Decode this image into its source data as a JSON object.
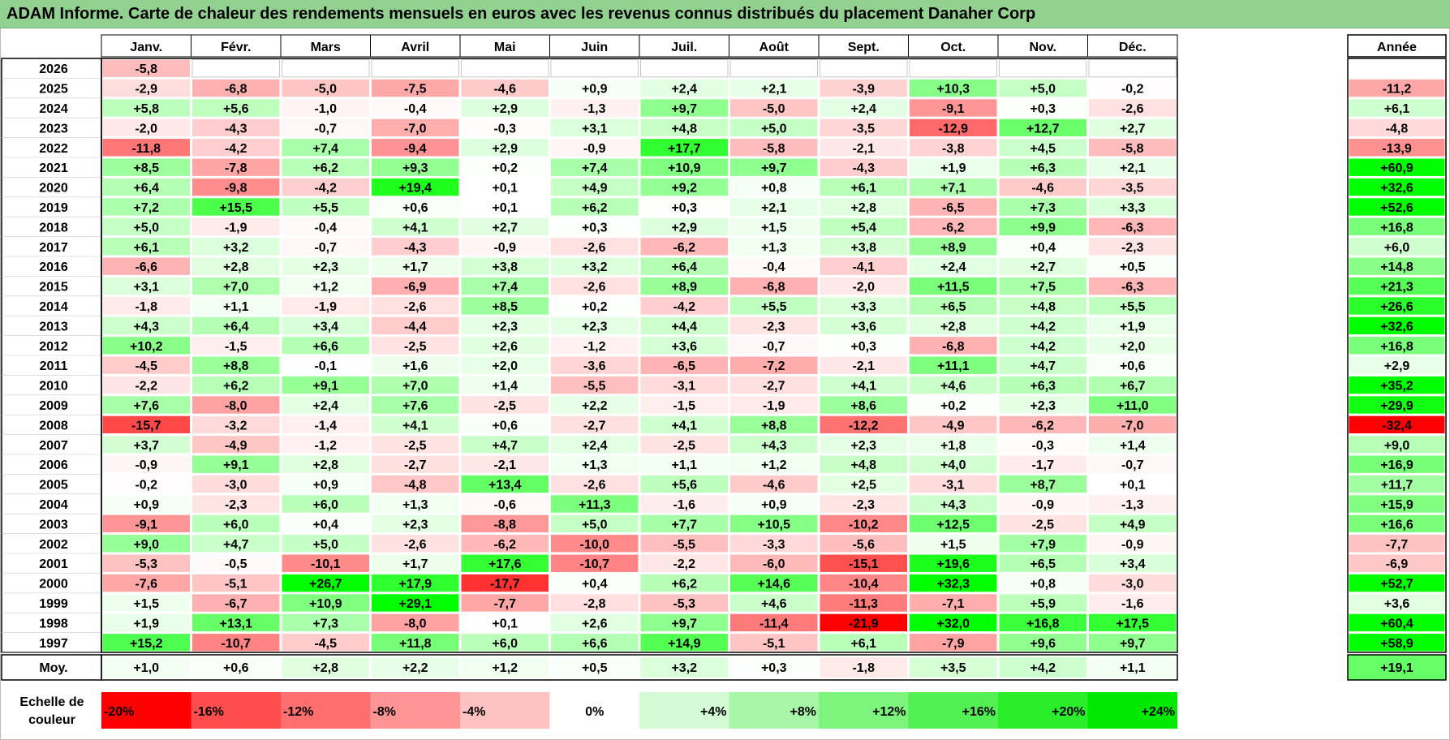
{
  "title": "ADAM Informe. Carte de chaleur des rendements mensuels en euros avec les revenus connus distribués du placement Danaher Corp",
  "chart_data": {
    "type": "heatmap",
    "title": "ADAM Informe. Carte de chaleur des rendements mensuels en euros avec les revenus connus distribués du placement Danaher Corp",
    "months": [
      "Janv.",
      "Févr.",
      "Mars",
      "Avril",
      "Mai",
      "Juin",
      "Juil.",
      "Août",
      "Sept.",
      "Oct.",
      "Nov.",
      "Déc."
    ],
    "annual_label": "Année",
    "average_label": "Moy.",
    "scale_label_line1": "Echelle de",
    "scale_label_line2": "couleur",
    "rows": [
      {
        "year": "2026",
        "values": [
          "-5,8",
          "",
          "",
          "",
          "",
          "",
          "",
          "",
          "",
          "",
          "",
          ""
        ],
        "annual": ""
      },
      {
        "year": "2025",
        "values": [
          "-2,9",
          "-6,8",
          "-5,0",
          "-7,5",
          "-4,6",
          "+0,9",
          "+2,4",
          "+2,1",
          "-3,9",
          "+10,3",
          "+5,0",
          "-0,2"
        ],
        "annual": "-11,2"
      },
      {
        "year": "2024",
        "values": [
          "+5,8",
          "+5,6",
          "-1,0",
          "-0,4",
          "+2,9",
          "-1,3",
          "+9,7",
          "-5,0",
          "+2,4",
          "-9,1",
          "+0,3",
          "-2,6"
        ],
        "annual": "+6,1"
      },
      {
        "year": "2023",
        "values": [
          "-2,0",
          "-4,3",
          "-0,7",
          "-7,0",
          "-0,3",
          "+3,1",
          "+4,8",
          "+5,0",
          "-3,5",
          "-12,9",
          "+12,7",
          "+2,7"
        ],
        "annual": "-4,8"
      },
      {
        "year": "2022",
        "values": [
          "-11,8",
          "-4,2",
          "+7,4",
          "-9,4",
          "+2,9",
          "-0,9",
          "+17,7",
          "-5,8",
          "-2,1",
          "-3,8",
          "+4,5",
          "-5,8"
        ],
        "annual": "-13,9"
      },
      {
        "year": "2021",
        "values": [
          "+8,5",
          "-7,8",
          "+6,2",
          "+9,3",
          "+0,2",
          "+7,4",
          "+10,9",
          "+9,7",
          "-4,3",
          "+1,9",
          "+6,3",
          "+2,1"
        ],
        "annual": "+60,9"
      },
      {
        "year": "2020",
        "values": [
          "+6,4",
          "-9,8",
          "-4,2",
          "+19,4",
          "+0,1",
          "+4,9",
          "+9,2",
          "+0,8",
          "+6,1",
          "+7,1",
          "-4,6",
          "-3,5"
        ],
        "annual": "+32,6"
      },
      {
        "year": "2019",
        "values": [
          "+7,2",
          "+15,5",
          "+5,5",
          "+0,6",
          "+0,1",
          "+6,2",
          "+0,3",
          "+2,1",
          "+2,8",
          "-6,5",
          "+7,3",
          "+3,3"
        ],
        "annual": "+52,6"
      },
      {
        "year": "2018",
        "values": [
          "+5,0",
          "-1,9",
          "-0,4",
          "+4,1",
          "+2,7",
          "+0,3",
          "+2,9",
          "+1,5",
          "+5,4",
          "-6,2",
          "+9,9",
          "-6,3"
        ],
        "annual": "+16,8"
      },
      {
        "year": "2017",
        "values": [
          "+6,1",
          "+3,2",
          "-0,7",
          "-4,3",
          "-0,9",
          "-2,6",
          "-6,2",
          "+1,3",
          "+3,8",
          "+8,9",
          "+0,4",
          "-2,3"
        ],
        "annual": "+6,0"
      },
      {
        "year": "2016",
        "values": [
          "-6,6",
          "+2,8",
          "+2,3",
          "+1,7",
          "+3,8",
          "+3,2",
          "+6,4",
          "-0,4",
          "-4,1",
          "+2,4",
          "+2,7",
          "+0,5"
        ],
        "annual": "+14,8"
      },
      {
        "year": "2015",
        "values": [
          "+3,1",
          "+7,0",
          "+1,2",
          "-6,9",
          "+7,4",
          "-2,6",
          "+8,9",
          "-6,8",
          "-2,0",
          "+11,5",
          "+7,5",
          "-6,3"
        ],
        "annual": "+21,3"
      },
      {
        "year": "2014",
        "values": [
          "-1,8",
          "+1,1",
          "-1,9",
          "-2,6",
          "+8,5",
          "+0,2",
          "-4,2",
          "+5,5",
          "+3,3",
          "+6,5",
          "+4,8",
          "+5,5"
        ],
        "annual": "+26,6"
      },
      {
        "year": "2013",
        "values": [
          "+4,3",
          "+6,4",
          "+3,4",
          "-4,4",
          "+2,3",
          "+2,3",
          "+4,4",
          "-2,3",
          "+3,6",
          "+2,8",
          "+4,2",
          "+1,9"
        ],
        "annual": "+32,6"
      },
      {
        "year": "2012",
        "values": [
          "+10,2",
          "-1,5",
          "+6,6",
          "-2,5",
          "+2,6",
          "-1,2",
          "+3,6",
          "-0,7",
          "+0,3",
          "-6,8",
          "+4,2",
          "+2,0"
        ],
        "annual": "+16,8"
      },
      {
        "year": "2011",
        "values": [
          "-4,5",
          "+8,8",
          "-0,1",
          "+1,6",
          "+2,0",
          "-3,6",
          "-6,5",
          "-7,2",
          "-2,1",
          "+11,1",
          "+4,7",
          "+0,6"
        ],
        "annual": "+2,9"
      },
      {
        "year": "2010",
        "values": [
          "-2,2",
          "+6,2",
          "+9,1",
          "+7,0",
          "+1,4",
          "-5,5",
          "-3,1",
          "-2,7",
          "+4,1",
          "+4,6",
          "+6,3",
          "+6,7"
        ],
        "annual": "+35,2"
      },
      {
        "year": "2009",
        "values": [
          "+7,6",
          "-8,0",
          "+2,4",
          "+7,6",
          "-2,5",
          "+2,2",
          "-1,5",
          "-1,9",
          "+8,6",
          "+0,2",
          "+2,3",
          "+11,0"
        ],
        "annual": "+29,9"
      },
      {
        "year": "2008",
        "values": [
          "-15,7",
          "-3,2",
          "-1,4",
          "+4,1",
          "+0,6",
          "-2,7",
          "+4,1",
          "+8,8",
          "-12,2",
          "-4,9",
          "-6,2",
          "-7,0"
        ],
        "annual": "-32,4"
      },
      {
        "year": "2007",
        "values": [
          "+3,7",
          "-4,9",
          "-1,2",
          "-2,5",
          "+4,7",
          "+2,4",
          "-2,5",
          "+4,3",
          "+2,3",
          "+1,8",
          "-0,3",
          "+1,4"
        ],
        "annual": "+9,0"
      },
      {
        "year": "2006",
        "values": [
          "-0,9",
          "+9,1",
          "+2,8",
          "-2,7",
          "-2,1",
          "+1,3",
          "+1,1",
          "+1,2",
          "+4,8",
          "+4,0",
          "-1,7",
          "-0,7"
        ],
        "annual": "+16,9"
      },
      {
        "year": "2005",
        "values": [
          "-0,2",
          "-3,0",
          "+0,9",
          "-4,8",
          "+13,4",
          "-2,6",
          "+5,6",
          "-4,6",
          "+2,5",
          "-3,1",
          "+8,7",
          "+0,1"
        ],
        "annual": "+11,7"
      },
      {
        "year": "2004",
        "values": [
          "+0,9",
          "-2,3",
          "+6,0",
          "+1,3",
          "-0,6",
          "+11,3",
          "-1,6",
          "+0,9",
          "-2,3",
          "+4,3",
          "-0,9",
          "-1,3"
        ],
        "annual": "+15,9"
      },
      {
        "year": "2003",
        "values": [
          "-9,1",
          "+6,0",
          "+0,4",
          "+2,3",
          "-8,8",
          "+5,0",
          "+7,7",
          "+10,5",
          "-10,2",
          "+12,5",
          "-2,5",
          "+4,9"
        ],
        "annual": "+16,6"
      },
      {
        "year": "2002",
        "values": [
          "+9,0",
          "+4,7",
          "+5,0",
          "-2,6",
          "-6,2",
          "-10,0",
          "-5,5",
          "-3,3",
          "-5,6",
          "+1,5",
          "+7,9",
          "-0,9"
        ],
        "annual": "-7,7"
      },
      {
        "year": "2001",
        "values": [
          "-5,3",
          "-0,5",
          "-10,1",
          "+1,7",
          "+17,6",
          "-10,7",
          "-2,2",
          "-6,0",
          "-15,1",
          "+19,6",
          "+6,5",
          "+3,4"
        ],
        "annual": "-6,9"
      },
      {
        "year": "2000",
        "values": [
          "-7,6",
          "-5,1",
          "+26,7",
          "+17,9",
          "-17,7",
          "+0,4",
          "+6,2",
          "+14,6",
          "-10,4",
          "+32,3",
          "+0,8",
          "-3,0"
        ],
        "annual": "+52,7"
      },
      {
        "year": "1999",
        "values": [
          "+1,5",
          "-6,7",
          "+10,9",
          "+29,1",
          "-7,7",
          "-2,8",
          "-5,3",
          "+4,6",
          "-11,3",
          "-7,1",
          "+5,9",
          "-1,6"
        ],
        "annual": "+3,6"
      },
      {
        "year": "1998",
        "values": [
          "+1,9",
          "+13,1",
          "+7,3",
          "-8,0",
          "+0,1",
          "+2,6",
          "+9,7",
          "-11,4",
          "-21,9",
          "+32,0",
          "+16,8",
          "+17,5"
        ],
        "annual": "+60,4"
      },
      {
        "year": "1997",
        "values": [
          "+15,2",
          "-10,7",
          "-4,5",
          "+11,8",
          "+6,0",
          "+6,6",
          "+14,9",
          "-5,1",
          "+6,1",
          "-7,9",
          "+9,6",
          "+9,7"
        ],
        "annual": "+58,9"
      }
    ],
    "averages": [
      "+1,0",
      "+0,6",
      "+2,8",
      "+2,2",
      "+1,2",
      "+0,5",
      "+3,2",
      "+0,3",
      "-1,8",
      "+3,5",
      "+4,2",
      "+1,1"
    ],
    "average_annual": "+19,1",
    "scale": [
      "-20%",
      "-16%",
      "-12%",
      "-8%",
      "-4%",
      "0%",
      "+4%",
      "+8%",
      "+12%",
      "+16%",
      "+20%",
      "+24%"
    ],
    "colors": {
      "title_bg": "#92d18f",
      "negative_max": "#ff0000",
      "positive_max": "#00ff00",
      "neutral": "#ffffff"
    }
  }
}
